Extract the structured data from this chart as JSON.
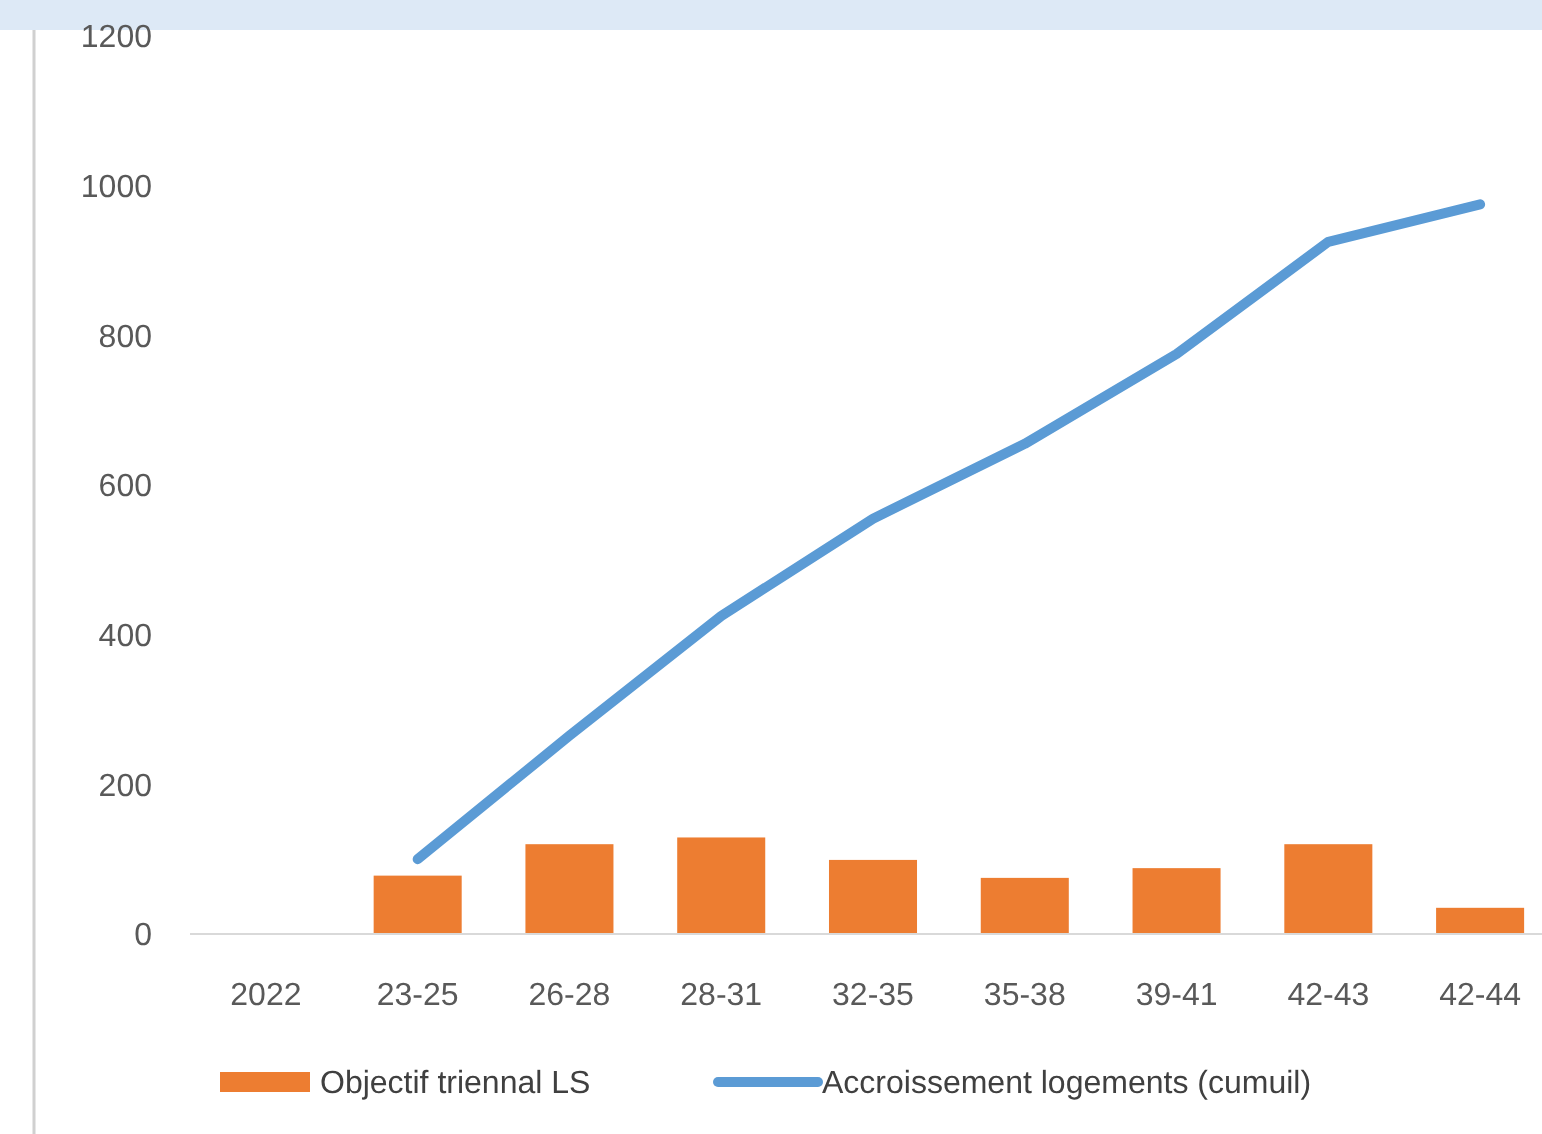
{
  "chart_data": {
    "type": "bar",
    "categories": [
      "2022",
      "23-25",
      "26-28",
      "28-31",
      "32-35",
      "35-38",
      "39-41",
      "42-43",
      "42-44"
    ],
    "series": [
      {
        "name": "Objectif triennal LS",
        "color": "#ed7d31",
        "values": [
          null,
          78,
          120,
          129,
          99,
          75,
          88,
          120,
          35
        ]
      },
      {
        "name": "Accroissement logements (cumuil)",
        "type": "line",
        "color": "#5b9bd5",
        "values": [
          null,
          100,
          265,
          425,
          555,
          655,
          775,
          925,
          975
        ]
      }
    ],
    "ylim": [
      0,
      1200
    ],
    "yticks": [
      0,
      200,
      400,
      600,
      800,
      1000,
      1200
    ],
    "grid": false,
    "legend": "bottom",
    "marker": "none",
    "line_style": "solid"
  }
}
